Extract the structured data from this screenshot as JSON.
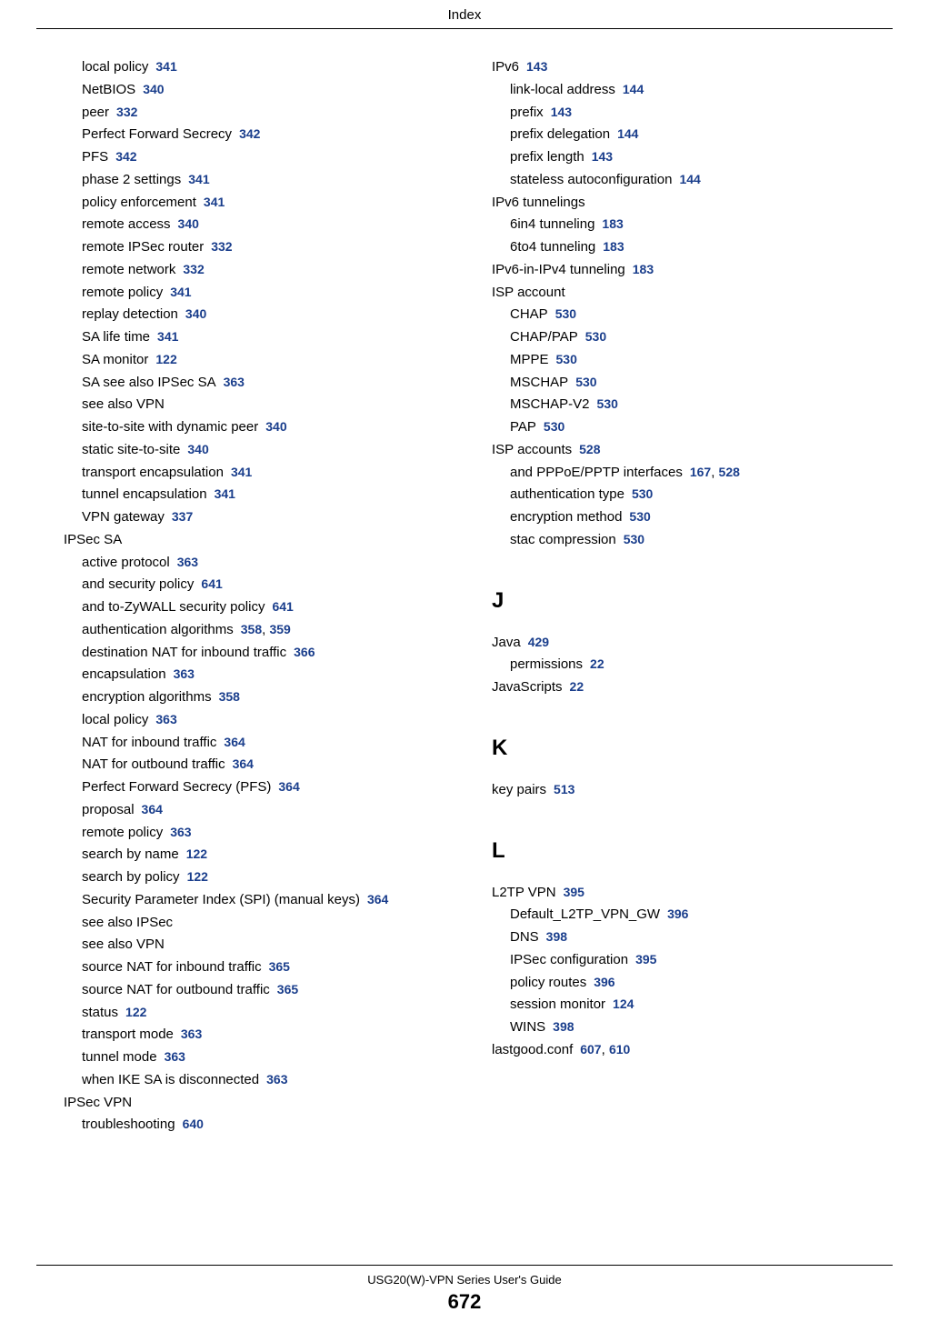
{
  "header": "Index",
  "footer": {
    "title": "USG20(W)-VPN Series User's Guide",
    "page": "672"
  },
  "colors": {
    "link": "#1a3e8c",
    "text": "#000000",
    "background": "#ffffff"
  },
  "leftColumn": [
    {
      "level": 1,
      "text": "local policy",
      "refs": [
        "341"
      ]
    },
    {
      "level": 1,
      "text": "NetBIOS",
      "refs": [
        "340"
      ]
    },
    {
      "level": 1,
      "text": "peer",
      "refs": [
        "332"
      ]
    },
    {
      "level": 1,
      "text": "Perfect Forward Secrecy",
      "refs": [
        "342"
      ]
    },
    {
      "level": 1,
      "text": "PFS",
      "refs": [
        "342"
      ]
    },
    {
      "level": 1,
      "text": "phase 2 settings",
      "refs": [
        "341"
      ]
    },
    {
      "level": 1,
      "text": "policy enforcement",
      "refs": [
        "341"
      ]
    },
    {
      "level": 1,
      "text": "remote access",
      "refs": [
        "340"
      ]
    },
    {
      "level": 1,
      "text": "remote IPSec router",
      "refs": [
        "332"
      ]
    },
    {
      "level": 1,
      "text": "remote network",
      "refs": [
        "332"
      ]
    },
    {
      "level": 1,
      "text": "remote policy",
      "refs": [
        "341"
      ]
    },
    {
      "level": 1,
      "text": "replay detection",
      "refs": [
        "340"
      ]
    },
    {
      "level": 1,
      "text": "SA life time",
      "refs": [
        "341"
      ]
    },
    {
      "level": 1,
      "text": "SA monitor",
      "refs": [
        "122"
      ]
    },
    {
      "level": 1,
      "text": "SA see also IPSec SA",
      "refs": [
        "363"
      ]
    },
    {
      "level": 1,
      "text": "see also VPN",
      "refs": []
    },
    {
      "level": 1,
      "text": "site-to-site with dynamic peer",
      "refs": [
        "340"
      ]
    },
    {
      "level": 1,
      "text": "static site-to-site",
      "refs": [
        "340"
      ]
    },
    {
      "level": 1,
      "text": "transport encapsulation",
      "refs": [
        "341"
      ]
    },
    {
      "level": 1,
      "text": "tunnel encapsulation",
      "refs": [
        "341"
      ]
    },
    {
      "level": 1,
      "text": "VPN gateway",
      "refs": [
        "337"
      ]
    },
    {
      "level": 0,
      "text": "IPSec SA",
      "refs": []
    },
    {
      "level": 1,
      "text": "active protocol",
      "refs": [
        "363"
      ]
    },
    {
      "level": 1,
      "text": "and security policy",
      "refs": [
        "641"
      ]
    },
    {
      "level": 1,
      "text": "and to-ZyWALL security policy",
      "refs": [
        "641"
      ]
    },
    {
      "level": 1,
      "text": "authentication algorithms",
      "refs": [
        "358",
        "359"
      ]
    },
    {
      "level": 1,
      "text": "destination NAT for inbound traffic",
      "refs": [
        "366"
      ]
    },
    {
      "level": 1,
      "text": "encapsulation",
      "refs": [
        "363"
      ]
    },
    {
      "level": 1,
      "text": "encryption algorithms",
      "refs": [
        "358"
      ]
    },
    {
      "level": 1,
      "text": "local policy",
      "refs": [
        "363"
      ]
    },
    {
      "level": 1,
      "text": "NAT for inbound traffic",
      "refs": [
        "364"
      ]
    },
    {
      "level": 1,
      "text": "NAT for outbound traffic",
      "refs": [
        "364"
      ]
    },
    {
      "level": 1,
      "text": "Perfect Forward Secrecy (PFS)",
      "refs": [
        "364"
      ]
    },
    {
      "level": 1,
      "text": "proposal",
      "refs": [
        "364"
      ]
    },
    {
      "level": 1,
      "text": "remote policy",
      "refs": [
        "363"
      ]
    },
    {
      "level": 1,
      "text": "search by name",
      "refs": [
        "122"
      ]
    },
    {
      "level": 1,
      "text": "search by policy",
      "refs": [
        "122"
      ]
    },
    {
      "level": 1,
      "text": "Security Parameter Index (SPI) (manual keys)",
      "refs": [
        "364"
      ]
    },
    {
      "level": 1,
      "text": "see also IPSec",
      "refs": []
    },
    {
      "level": 1,
      "text": "see also VPN",
      "refs": []
    },
    {
      "level": 1,
      "text": "source NAT for inbound traffic",
      "refs": [
        "365"
      ]
    },
    {
      "level": 1,
      "text": "source NAT for outbound traffic",
      "refs": [
        "365"
      ]
    },
    {
      "level": 1,
      "text": "status",
      "refs": [
        "122"
      ]
    },
    {
      "level": 1,
      "text": "transport mode",
      "refs": [
        "363"
      ]
    },
    {
      "level": 1,
      "text": "tunnel mode",
      "refs": [
        "363"
      ]
    },
    {
      "level": 1,
      "text": "when IKE SA is disconnected",
      "refs": [
        "363"
      ]
    },
    {
      "level": 0,
      "text": "IPSec VPN",
      "refs": []
    },
    {
      "level": 1,
      "text": "troubleshooting",
      "refs": [
        "640"
      ]
    }
  ],
  "rightColumn": [
    {
      "level": 0,
      "text": "IPv6",
      "refs": [
        "143"
      ]
    },
    {
      "level": 1,
      "text": "link-local address",
      "refs": [
        "144"
      ]
    },
    {
      "level": 1,
      "text": "prefix",
      "refs": [
        "143"
      ]
    },
    {
      "level": 1,
      "text": "prefix delegation",
      "refs": [
        "144"
      ]
    },
    {
      "level": 1,
      "text": "prefix length",
      "refs": [
        "143"
      ]
    },
    {
      "level": 1,
      "text": "stateless autoconfiguration",
      "refs": [
        "144"
      ]
    },
    {
      "level": 0,
      "text": "IPv6 tunnelings",
      "refs": []
    },
    {
      "level": 1,
      "text": "6in4 tunneling",
      "refs": [
        "183"
      ]
    },
    {
      "level": 1,
      "text": "6to4 tunneling",
      "refs": [
        "183"
      ]
    },
    {
      "level": 0,
      "text": "IPv6-in-IPv4 tunneling",
      "refs": [
        "183"
      ]
    },
    {
      "level": 0,
      "text": "ISP account",
      "refs": []
    },
    {
      "level": 1,
      "text": "CHAP",
      "refs": [
        "530"
      ]
    },
    {
      "level": 1,
      "text": "CHAP/PAP",
      "refs": [
        "530"
      ]
    },
    {
      "level": 1,
      "text": "MPPE",
      "refs": [
        "530"
      ]
    },
    {
      "level": 1,
      "text": "MSCHAP",
      "refs": [
        "530"
      ]
    },
    {
      "level": 1,
      "text": "MSCHAP-V2",
      "refs": [
        "530"
      ]
    },
    {
      "level": 1,
      "text": "PAP",
      "refs": [
        "530"
      ]
    },
    {
      "level": 0,
      "text": "ISP accounts",
      "refs": [
        "528"
      ]
    },
    {
      "level": 1,
      "text": "and PPPoE/PPTP interfaces",
      "refs": [
        "167",
        "528"
      ]
    },
    {
      "level": 1,
      "text": "authentication type",
      "refs": [
        "530"
      ]
    },
    {
      "level": 1,
      "text": "encryption method",
      "refs": [
        "530"
      ]
    },
    {
      "level": 1,
      "text": "stac compression",
      "refs": [
        "530"
      ]
    },
    {
      "type": "section",
      "letter": "J"
    },
    {
      "level": 0,
      "text": "Java",
      "refs": [
        "429"
      ]
    },
    {
      "level": 1,
      "text": "permissions",
      "refs": [
        "22"
      ]
    },
    {
      "level": 0,
      "text": "JavaScripts",
      "refs": [
        "22"
      ]
    },
    {
      "type": "section",
      "letter": "K"
    },
    {
      "level": 0,
      "text": "key pairs",
      "refs": [
        "513"
      ]
    },
    {
      "type": "section",
      "letter": "L"
    },
    {
      "level": 0,
      "text": "L2TP VPN",
      "refs": [
        "395"
      ]
    },
    {
      "level": 1,
      "text": "Default_L2TP_VPN_GW",
      "refs": [
        "396"
      ]
    },
    {
      "level": 1,
      "text": "DNS",
      "refs": [
        "398"
      ]
    },
    {
      "level": 1,
      "text": "IPSec configuration",
      "refs": [
        "395"
      ]
    },
    {
      "level": 1,
      "text": "policy routes",
      "refs": [
        "396"
      ]
    },
    {
      "level": 1,
      "text": "session monitor",
      "refs": [
        "124"
      ]
    },
    {
      "level": 1,
      "text": "WINS",
      "refs": [
        "398"
      ]
    },
    {
      "level": 0,
      "text": "lastgood.conf",
      "refs": [
        "607",
        "610"
      ]
    }
  ]
}
